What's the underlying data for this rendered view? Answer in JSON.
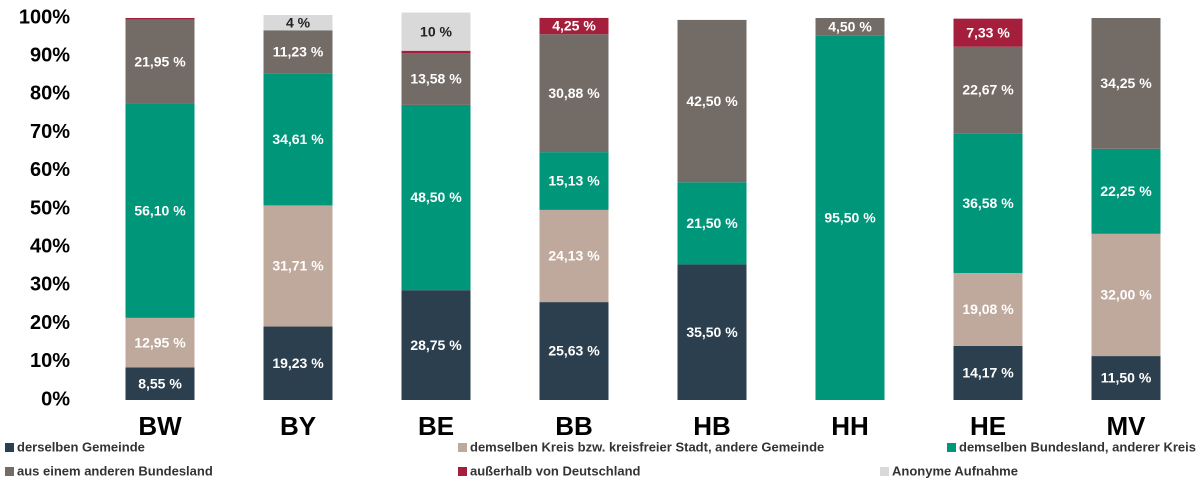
{
  "chart_data": {
    "type": "stacked_bar",
    "categories": [
      "BW",
      "BY",
      "BE",
      "BB",
      "HB",
      "HH",
      "HE",
      "MV"
    ],
    "series": [
      {
        "name": "derselben Gemeinde",
        "color": "#2b3f4e",
        "values": [
          8.55,
          19.23,
          28.75,
          25.63,
          35.5,
          0,
          14.17,
          11.5
        ],
        "value_labels": [
          "8,55 %",
          "19,23 %",
          "28,75 %",
          "25,63 %",
          "35,50 %",
          null,
          "14,17 %",
          "11,50 %"
        ]
      },
      {
        "name": "demselben Kreis bzw. kreisfreier Stadt, andere Gemeinde",
        "color": "#bfa89c",
        "values": [
          12.95,
          31.71,
          0,
          24.13,
          0,
          0,
          19.08,
          32.0
        ],
        "value_labels": [
          "12,95 %",
          "31,71 %",
          null,
          "24,13 %",
          null,
          null,
          "19,08 %",
          "32,00 %"
        ]
      },
      {
        "name": "demselben Bundesland, anderer Kreis",
        "color": "#00967a",
        "values": [
          56.1,
          34.61,
          48.5,
          15.13,
          21.5,
          95.5,
          36.58,
          22.25
        ],
        "value_labels": [
          "56,10 %",
          "34,61 %",
          "48,50 %",
          "15,13 %",
          "21,50 %",
          "95,50 %",
          "36,58 %",
          "22,25 %"
        ]
      },
      {
        "name": "aus einem anderen Bundesland",
        "color": "#736b65",
        "values": [
          21.95,
          11.23,
          13.58,
          30.88,
          42.5,
          4.5,
          22.67,
          34.25
        ],
        "value_labels": [
          "21,95 %",
          "11,23 %",
          "13,58 %",
          "30,88 %",
          "42,50 %",
          "4,50 %",
          "22,67 %",
          "34,25 %"
        ]
      },
      {
        "name": "außerhalb von Deutschland",
        "color": "#a51f3c",
        "values": [
          0.45,
          0,
          0.6,
          4.25,
          0,
          0,
          7.33,
          0
        ],
        "value_labels": [
          null,
          null,
          null,
          "4,25 %",
          null,
          null,
          "7,33 %",
          null
        ]
      },
      {
        "name": "Anonyme Aufnahme",
        "color": "#d9d9d9",
        "values": [
          0,
          4,
          10,
          0,
          0,
          0,
          0,
          0
        ],
        "value_labels": [
          null,
          "4 %",
          "10 %",
          null,
          null,
          null,
          null,
          null
        ]
      }
    ],
    "ylim": [
      0,
      100
    ],
    "yticks": [
      {
        "value": 0,
        "label": "0%"
      },
      {
        "value": 10,
        "label": "10%"
      },
      {
        "value": 20,
        "label": "20%"
      },
      {
        "value": 30,
        "label": "30%"
      },
      {
        "value": 40,
        "label": "40%"
      },
      {
        "value": 50,
        "label": "50%"
      },
      {
        "value": 60,
        "label": "60%"
      },
      {
        "value": 70,
        "label": "70%"
      },
      {
        "value": 80,
        "label": "80%"
      },
      {
        "value": 90,
        "label": "90%"
      },
      {
        "value": 100,
        "label": "100%"
      }
    ],
    "legend": "bottom"
  }
}
